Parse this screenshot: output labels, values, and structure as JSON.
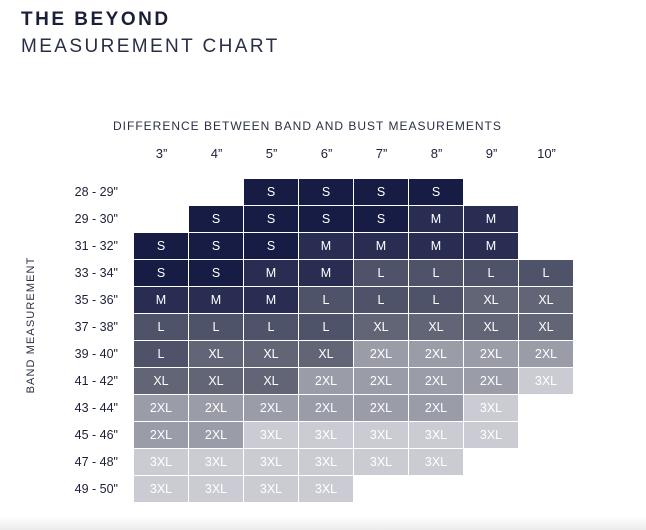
{
  "header": {
    "brand": "THE BEYOND",
    "subtitle": "MEASUREMENT CHART"
  },
  "chart": {
    "column_axis_label": "DIFFERENCE BETWEEN BAND AND BUST MEASUREMENTS",
    "row_axis_label": "BAND MEASUREMENT",
    "columns": [
      "3”",
      "4”",
      "5”",
      "6”",
      "7”",
      "8”",
      "9”",
      "10”"
    ],
    "rows": [
      {
        "band": "28 - 29\"",
        "sizes": [
          "",
          "",
          "S",
          "S",
          "S",
          "S",
          "",
          ""
        ]
      },
      {
        "band": "29 - 30\"",
        "sizes": [
          "",
          "S",
          "S",
          "S",
          "S",
          "M",
          "M",
          ""
        ]
      },
      {
        "band": "31 - 32\"",
        "sizes": [
          "S",
          "S",
          "S",
          "M",
          "M",
          "M",
          "M",
          ""
        ]
      },
      {
        "band": "33 - 34\"",
        "sizes": [
          "S",
          "S",
          "M",
          "M",
          "L",
          "L",
          "L",
          "L"
        ]
      },
      {
        "band": "35 - 36\"",
        "sizes": [
          "M",
          "M",
          "M",
          "L",
          "L",
          "L",
          "XL",
          "XL"
        ]
      },
      {
        "band": "37 - 38\"",
        "sizes": [
          "L",
          "L",
          "L",
          "L",
          "XL",
          "XL",
          "XL",
          "XL"
        ]
      },
      {
        "band": "39 - 40\"",
        "sizes": [
          "L",
          "XL",
          "XL",
          "XL",
          "2XL",
          "2XL",
          "2XL",
          "2XL"
        ]
      },
      {
        "band": "41 - 42\"",
        "sizes": [
          "XL",
          "XL",
          "XL",
          "2XL",
          "2XL",
          "2XL",
          "2XL",
          "3XL"
        ]
      },
      {
        "band": "43 - 44\"",
        "sizes": [
          "2XL",
          "2XL",
          "2XL",
          "2XL",
          "2XL",
          "2XL",
          "3XL",
          ""
        ]
      },
      {
        "band": "45 - 46\"",
        "sizes": [
          "2XL",
          "2XL",
          "3XL",
          "3XL",
          "3XL",
          "3XL",
          "3XL",
          ""
        ]
      },
      {
        "band": "47 - 48\"",
        "sizes": [
          "3XL",
          "3XL",
          "3XL",
          "3XL",
          "3XL",
          "3XL",
          "",
          ""
        ]
      },
      {
        "band": "49 - 50\"",
        "sizes": [
          "3XL",
          "3XL",
          "3XL",
          "3XL",
          "",
          "",
          "",
          ""
        ]
      }
    ],
    "size_colors": {
      "S": "#171c45",
      "M": "#292d52",
      "L": "#4f5369",
      "XL": "#626576",
      "2XL": "#9a9ca8",
      "3XL": "#cbccd3"
    }
  }
}
